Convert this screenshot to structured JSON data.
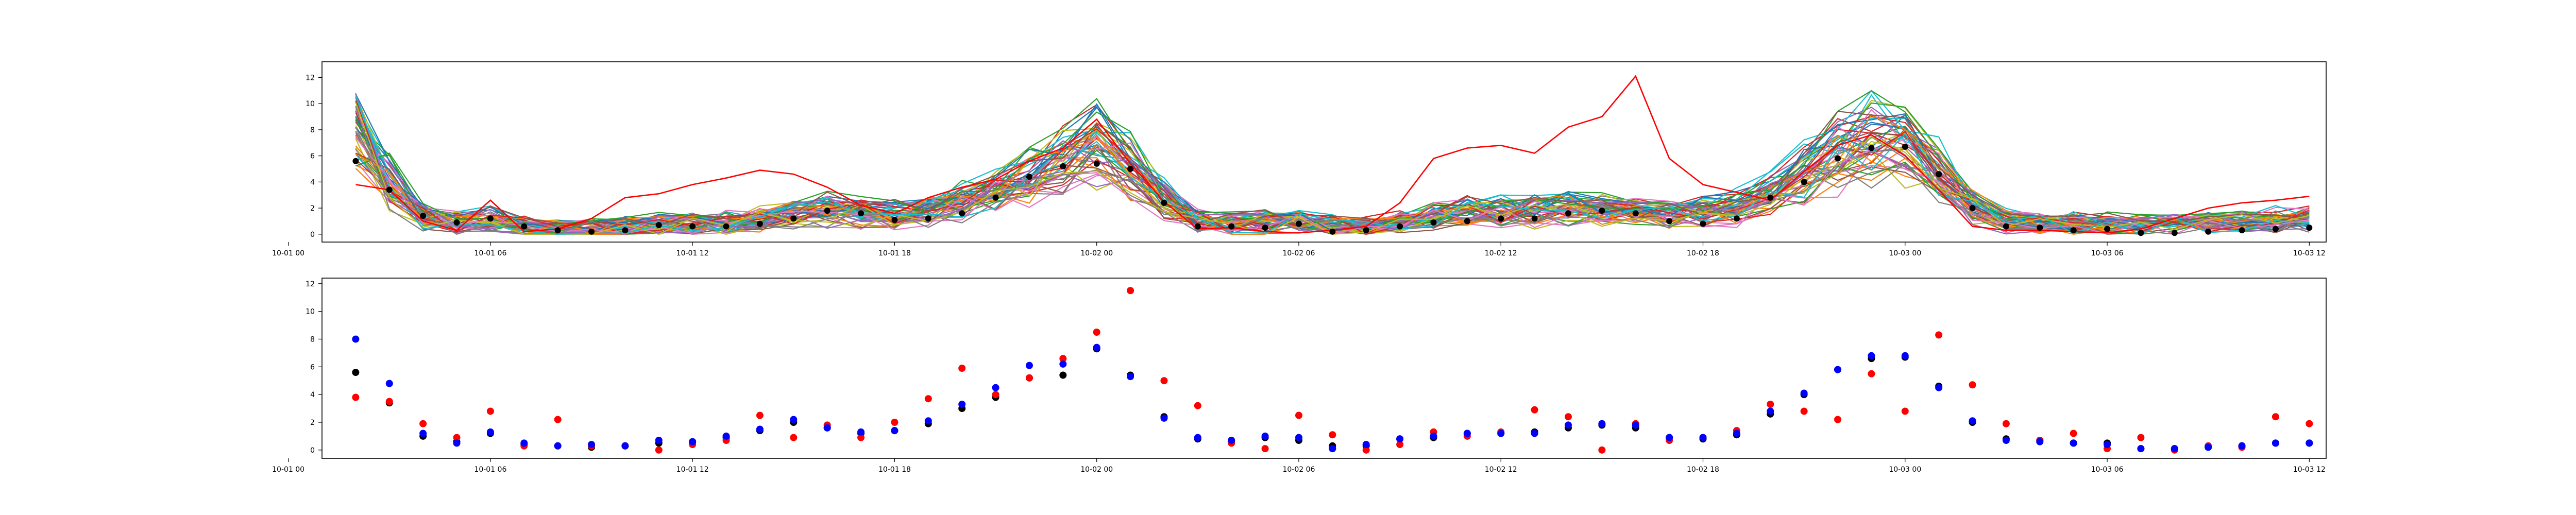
{
  "chart_data": [
    {
      "type": "line",
      "title": "",
      "xlabel": "",
      "ylabel": "",
      "xlim": [
        "10-01 01:00",
        "10-03 12:30"
      ],
      "ylim": [
        -0.6,
        13.2
      ],
      "x_ticks": [
        "10-01 00",
        "10-01 06",
        "10-01 12",
        "10-01 18",
        "10-02 00",
        "10-02 06",
        "10-02 12",
        "10-02 18",
        "10-03 00",
        "10-03 06",
        "10-03 12"
      ],
      "y_ticks": [
        0,
        2,
        4,
        6,
        8,
        10,
        12
      ],
      "x_times": [
        "10-01 02:00",
        "10-01 03:00",
        "10-01 04:00",
        "10-01 05:00",
        "10-01 06:00",
        "10-01 07:00",
        "10-01 08:00",
        "10-01 09:00",
        "10-01 10:00",
        "10-01 11:00",
        "10-01 12:00",
        "10-01 13:00",
        "10-01 14:00",
        "10-01 15:00",
        "10-01 16:00",
        "10-01 17:00",
        "10-01 18:00",
        "10-01 19:00",
        "10-01 20:00",
        "10-01 21:00",
        "10-01 22:00",
        "10-01 23:00",
        "10-02 00:00",
        "10-02 01:00",
        "10-02 02:00",
        "10-02 03:00",
        "10-02 04:00",
        "10-02 05:00",
        "10-02 06:00",
        "10-02 07:00",
        "10-02 08:00",
        "10-02 09:00",
        "10-02 10:00",
        "10-02 11:00",
        "10-02 12:00",
        "10-02 13:00",
        "10-02 14:00",
        "10-02 15:00",
        "10-02 16:00",
        "10-02 17:00",
        "10-02 18:00",
        "10-02 19:00",
        "10-02 20:00",
        "10-02 21:00",
        "10-02 22:00",
        "10-02 23:00",
        "10-03 00:00",
        "10-03 01:00",
        "10-03 02:00",
        "10-03 03:00",
        "10-03 04:00",
        "10-03 05:00",
        "10-03 06:00",
        "10-03 07:00",
        "10-03 08:00",
        "10-03 09:00",
        "10-03 10:00",
        "10-03 11:00",
        "10-03 12:00"
      ],
      "ensemble_count": 50,
      "ensemble_mean_curve": [
        8.0,
        4.0,
        1.4,
        0.9,
        1.1,
        0.6,
        0.4,
        0.5,
        0.6,
        0.8,
        0.7,
        0.9,
        1.2,
        1.6,
        1.9,
        1.6,
        1.5,
        1.8,
        2.4,
        3.3,
        4.5,
        5.8,
        7.0,
        5.2,
        2.6,
        1.0,
        0.8,
        0.9,
        1.0,
        0.7,
        0.6,
        0.9,
        1.4,
        1.8,
        1.7,
        1.8,
        2.0,
        1.9,
        1.6,
        1.5,
        1.7,
        2.1,
        3.0,
        4.6,
        6.3,
        7.2,
        6.8,
        4.8,
        2.2,
        1.1,
        0.9,
        0.9,
        0.8,
        0.7,
        0.8,
        0.9,
        1.0,
        1.1,
        1.2
      ],
      "highlighted_series": {
        "name": "",
        "color": "#ff0000",
        "values": [
          3.8,
          3.4,
          1.0,
          0.3,
          2.6,
          0.2,
          0.4,
          1.2,
          2.8,
          3.1,
          3.8,
          4.3,
          4.9,
          4.6,
          3.6,
          2.2,
          1.6,
          2.8,
          3.6,
          4.2,
          5.6,
          6.6,
          8.8,
          5.4,
          2.5,
          0.4,
          0.5,
          0.2,
          0.1,
          0.3,
          0.6,
          2.4,
          5.8,
          6.6,
          6.8,
          6.2,
          8.2,
          9.0,
          12.1,
          5.8,
          3.8,
          3.2,
          2.6,
          4.8,
          6.8,
          7.6,
          6.0,
          3.4,
          0.6,
          0.3,
          0.3,
          0.2,
          0.1,
          0.4,
          1.2,
          2.0,
          2.4,
          2.6,
          2.9
        ]
      },
      "mean_points": {
        "color": "#000000",
        "values": [
          5.6,
          3.4,
          1.4,
          0.9,
          1.2,
          0.6,
          0.3,
          0.2,
          0.3,
          0.7,
          0.6,
          0.6,
          0.8,
          1.2,
          1.8,
          1.6,
          1.1,
          1.2,
          1.6,
          2.8,
          4.4,
          5.2,
          5.4,
          5.0,
          2.4,
          0.6,
          0.6,
          0.5,
          0.8,
          0.2,
          0.3,
          0.6,
          0.9,
          1.0,
          1.2,
          1.2,
          1.6,
          1.8,
          1.6,
          1.0,
          0.8,
          1.2,
          2.8,
          4.0,
          5.8,
          6.6,
          6.7,
          4.6,
          2.0,
          0.6,
          0.5,
          0.3,
          0.4,
          0.1,
          0.1,
          0.2,
          0.3,
          0.4,
          0.5
        ]
      }
    },
    {
      "type": "scatter",
      "title": "",
      "xlabel": "",
      "ylabel": "",
      "xlim": [
        "10-01 01:00",
        "10-03 12:30"
      ],
      "ylim": [
        -0.6,
        12.4
      ],
      "x_ticks": [
        "10-01 00",
        "10-01 06",
        "10-01 12",
        "10-01 18",
        "10-02 00",
        "10-02 06",
        "10-02 12",
        "10-02 18",
        "10-03 00",
        "10-03 06",
        "10-03 12"
      ],
      "y_ticks": [
        0,
        2,
        4,
        6,
        8,
        10,
        12
      ],
      "x": [
        "10-01 02:00",
        "10-01 03:00",
        "10-01 04:00",
        "10-01 05:00",
        "10-01 06:00",
        "10-01 07:00",
        "10-01 08:00",
        "10-01 09:00",
        "10-01 10:00",
        "10-01 11:00",
        "10-01 12:00",
        "10-01 13:00",
        "10-01 14:00",
        "10-01 15:00",
        "10-01 16:00",
        "10-01 17:00",
        "10-01 18:00",
        "10-01 19:00",
        "10-01 20:00",
        "10-01 21:00",
        "10-01 22:00",
        "10-01 23:00",
        "10-02 00:00",
        "10-02 01:00",
        "10-02 02:00",
        "10-02 03:00",
        "10-02 04:00",
        "10-02 05:00",
        "10-02 06:00",
        "10-02 07:00",
        "10-02 08:00",
        "10-02 09:00",
        "10-02 10:00",
        "10-02 11:00",
        "10-02 12:00",
        "10-02 13:00",
        "10-02 14:00",
        "10-02 15:00",
        "10-02 16:00",
        "10-02 17:00",
        "10-02 18:00",
        "10-02 19:00",
        "10-02 20:00",
        "10-02 21:00",
        "10-02 22:00",
        "10-02 23:00",
        "10-03 00:00",
        "10-03 01:00",
        "10-03 02:00",
        "10-03 03:00",
        "10-03 04:00",
        "10-03 05:00",
        "10-03 06:00",
        "10-03 07:00",
        "10-03 08:00",
        "10-03 09:00",
        "10-03 10:00",
        "10-03 11:00",
        "10-03 12:00"
      ],
      "series": [
        {
          "color": "#000000",
          "values": [
            5.6,
            3.4,
            1.0,
            0.6,
            1.2,
            0.4,
            0.3,
            0.2,
            0.3,
            0.5,
            0.6,
            0.9,
            1.4,
            2.0,
            1.6,
            1.2,
            1.4,
            1.9,
            3.0,
            3.8,
            5.2,
            5.4,
            7.3,
            5.4,
            2.4,
            0.8,
            0.6,
            0.9,
            0.7,
            0.3,
            0.3,
            0.8,
            0.9,
            1.2,
            1.2,
            1.3,
            1.6,
            1.8,
            1.6,
            0.9,
            0.8,
            1.1,
            2.6,
            4.0,
            5.8,
            6.6,
            6.7,
            4.6,
            2.0,
            0.8,
            0.7,
            0.5,
            0.5,
            0.1,
            0.1,
            0.2,
            0.3,
            0.5,
            0.5
          ]
        },
        {
          "color": "#ff0000",
          "values": [
            3.8,
            3.5,
            1.9,
            0.9,
            2.8,
            0.3,
            2.2,
            0.3,
            0.3,
            0.0,
            0.4,
            0.7,
            2.5,
            0.9,
            1.8,
            0.9,
            2.0,
            3.7,
            5.9,
            4.0,
            5.2,
            6.6,
            8.5,
            11.5,
            5.0,
            3.2,
            0.5,
            0.1,
            2.5,
            1.1,
            0.0,
            0.4,
            1.3,
            1.0,
            1.3,
            2.9,
            2.4,
            0.0,
            1.9,
            0.7,
            0.9,
            1.4,
            3.3,
            2.8,
            2.2,
            5.5,
            2.8,
            8.3,
            4.7,
            1.9,
            0.7,
            1.2,
            0.1,
            0.9,
            0.0,
            0.3,
            0.2,
            2.4,
            1.9
          ]
        },
        {
          "color": "#0000ff",
          "values": [
            8.0,
            4.8,
            1.2,
            0.5,
            1.3,
            0.5,
            0.3,
            0.4,
            0.3,
            0.7,
            0.6,
            1.0,
            1.5,
            2.2,
            1.6,
            1.3,
            1.4,
            2.1,
            3.3,
            4.5,
            6.1,
            6.2,
            7.4,
            5.3,
            2.3,
            0.9,
            0.7,
            1.0,
            0.9,
            0.1,
            0.4,
            0.8,
            1.0,
            1.2,
            1.2,
            1.2,
            1.8,
            1.9,
            1.8,
            0.9,
            0.9,
            1.2,
            2.8,
            4.1,
            5.8,
            6.8,
            6.8,
            4.5,
            2.1,
            0.7,
            0.6,
            0.5,
            0.4,
            0.1,
            0.1,
            0.2,
            0.3,
            0.5,
            0.5
          ]
        }
      ]
    }
  ],
  "palette": [
    "#1f77b4",
    "#ff7f0e",
    "#2ca02c",
    "#d62728",
    "#9467bd",
    "#8c564b",
    "#e377c2",
    "#7f7f7f",
    "#bcbd22",
    "#17becf"
  ]
}
